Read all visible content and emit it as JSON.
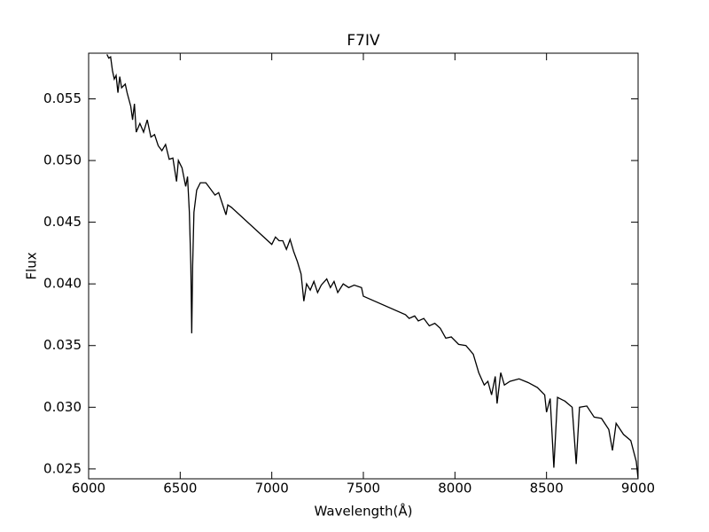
{
  "chart_data": {
    "type": "line",
    "title": "F7IV",
    "xlabel": "Wavelength(Å)",
    "ylabel": "Flux",
    "color": "#000000",
    "x": [
      6100,
      6110,
      6120,
      6130,
      6140,
      6150,
      6160,
      6170,
      6180,
      6200,
      6210,
      6230,
      6240,
      6250,
      6260,
      6280,
      6300,
      6320,
      6340,
      6360,
      6380,
      6400,
      6420,
      6440,
      6460,
      6480,
      6490,
      6510,
      6530,
      6540,
      6550,
      6558,
      6563,
      6568,
      6575,
      6590,
      6610,
      6640,
      6660,
      6690,
      6710,
      6730,
      6750,
      6760,
      6780,
      7000,
      7020,
      7040,
      7060,
      7080,
      7100,
      7120,
      7140,
      7160,
      7175,
      7190,
      7210,
      7230,
      7250,
      7270,
      7300,
      7320,
      7340,
      7360,
      7390,
      7420,
      7450,
      7490,
      7500,
      7730,
      7750,
      7780,
      7800,
      7830,
      7860,
      7890,
      7920,
      7950,
      7980,
      8020,
      8060,
      8100,
      8130,
      8160,
      8180,
      8200,
      8220,
      8230,
      8250,
      8270,
      8300,
      8350,
      8400,
      8450,
      8490,
      8500,
      8520,
      8540,
      8560,
      8600,
      8640,
      8662,
      8680,
      8720,
      8760,
      8800,
      8840,
      8860,
      8880,
      8920,
      8960,
      8990,
      9000
    ],
    "values": [
      0.0586,
      0.0583,
      0.0584,
      0.0573,
      0.0566,
      0.0569,
      0.0555,
      0.0568,
      0.0559,
      0.0562,
      0.0555,
      0.0544,
      0.0533,
      0.0546,
      0.0523,
      0.053,
      0.0523,
      0.0533,
      0.0519,
      0.0521,
      0.0512,
      0.0508,
      0.0513,
      0.0501,
      0.0502,
      0.0483,
      0.05,
      0.0494,
      0.0479,
      0.0487,
      0.0458,
      0.0415,
      0.036,
      0.0415,
      0.0458,
      0.0476,
      0.0482,
      0.0482,
      0.0478,
      0.0472,
      0.0474,
      0.0465,
      0.0456,
      0.0464,
      0.0462,
      0.0432,
      0.0438,
      0.0435,
      0.0435,
      0.0428,
      0.0436,
      0.0426,
      0.0418,
      0.0408,
      0.0386,
      0.04,
      0.0395,
      0.0402,
      0.0393,
      0.0399,
      0.0404,
      0.0397,
      0.0402,
      0.0393,
      0.04,
      0.0397,
      0.0399,
      0.0397,
      0.039,
      0.0375,
      0.0372,
      0.0374,
      0.037,
      0.0372,
      0.0366,
      0.0368,
      0.0364,
      0.0356,
      0.0357,
      0.0351,
      0.035,
      0.0343,
      0.0328,
      0.0318,
      0.0321,
      0.031,
      0.0325,
      0.0303,
      0.0328,
      0.0318,
      0.0321,
      0.0323,
      0.032,
      0.0316,
      0.031,
      0.0296,
      0.0307,
      0.0251,
      0.0308,
      0.0305,
      0.03,
      0.0254,
      0.03,
      0.0301,
      0.0292,
      0.0291,
      0.0282,
      0.0265,
      0.0287,
      0.0278,
      0.0273,
      0.0256,
      0.0242
    ],
    "xlim": [
      6000,
      9000
    ],
    "xticks": [
      6000,
      6500,
      7000,
      7500,
      8000,
      8500,
      9000
    ],
    "ylim": [
      0.0242,
      0.0587
    ],
    "yticks": [
      0.025,
      {
        "value": 0.03,
        "label": "0.030"
      },
      0.035,
      {
        "value": 0.04,
        "label": "0.040"
      },
      0.045,
      {
        "value": 0.05,
        "label": "0.050"
      },
      0.055
    ]
  }
}
